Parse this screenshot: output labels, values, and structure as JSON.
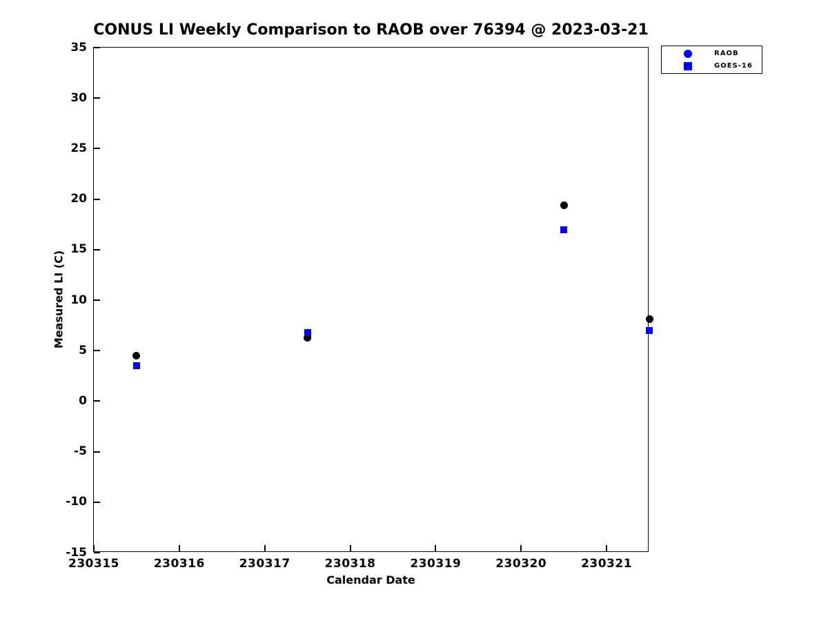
{
  "page": {
    "background": "#ffffff",
    "text_color": "#000000"
  },
  "chart_data": {
    "type": "scatter",
    "title": "CONUS LI Weekly Comparison to RAOB over 76394 @ 2023-03-21",
    "xlabel": "Calendar Date",
    "ylabel": "Measured LI (C)",
    "xlim": [
      230315,
      230321.5
    ],
    "ylim": [
      -15,
      35
    ],
    "xticks": [
      230315,
      230316,
      230317,
      230318,
      230319,
      230320,
      230321
    ],
    "yticks": [
      -15,
      -10,
      -5,
      0,
      5,
      10,
      15,
      20,
      25,
      30,
      35
    ],
    "grid": false,
    "legend_position": "top-right",
    "x": [
      230315.5,
      230317.5,
      230320.5,
      230321.5
    ],
    "series": [
      {
        "name": "RAOB",
        "marker": "circle",
        "marker_color": "#000000",
        "legend_marker_color": "#0000ff",
        "values": [
          4.5,
          6.3,
          19.4,
          8.1
        ]
      },
      {
        "name": "GOES-16",
        "marker": "square",
        "marker_color": "#0000ff",
        "legend_marker_color": "#0000ff",
        "values": [
          3.5,
          6.8,
          17.0,
          7.0
        ]
      }
    ]
  }
}
